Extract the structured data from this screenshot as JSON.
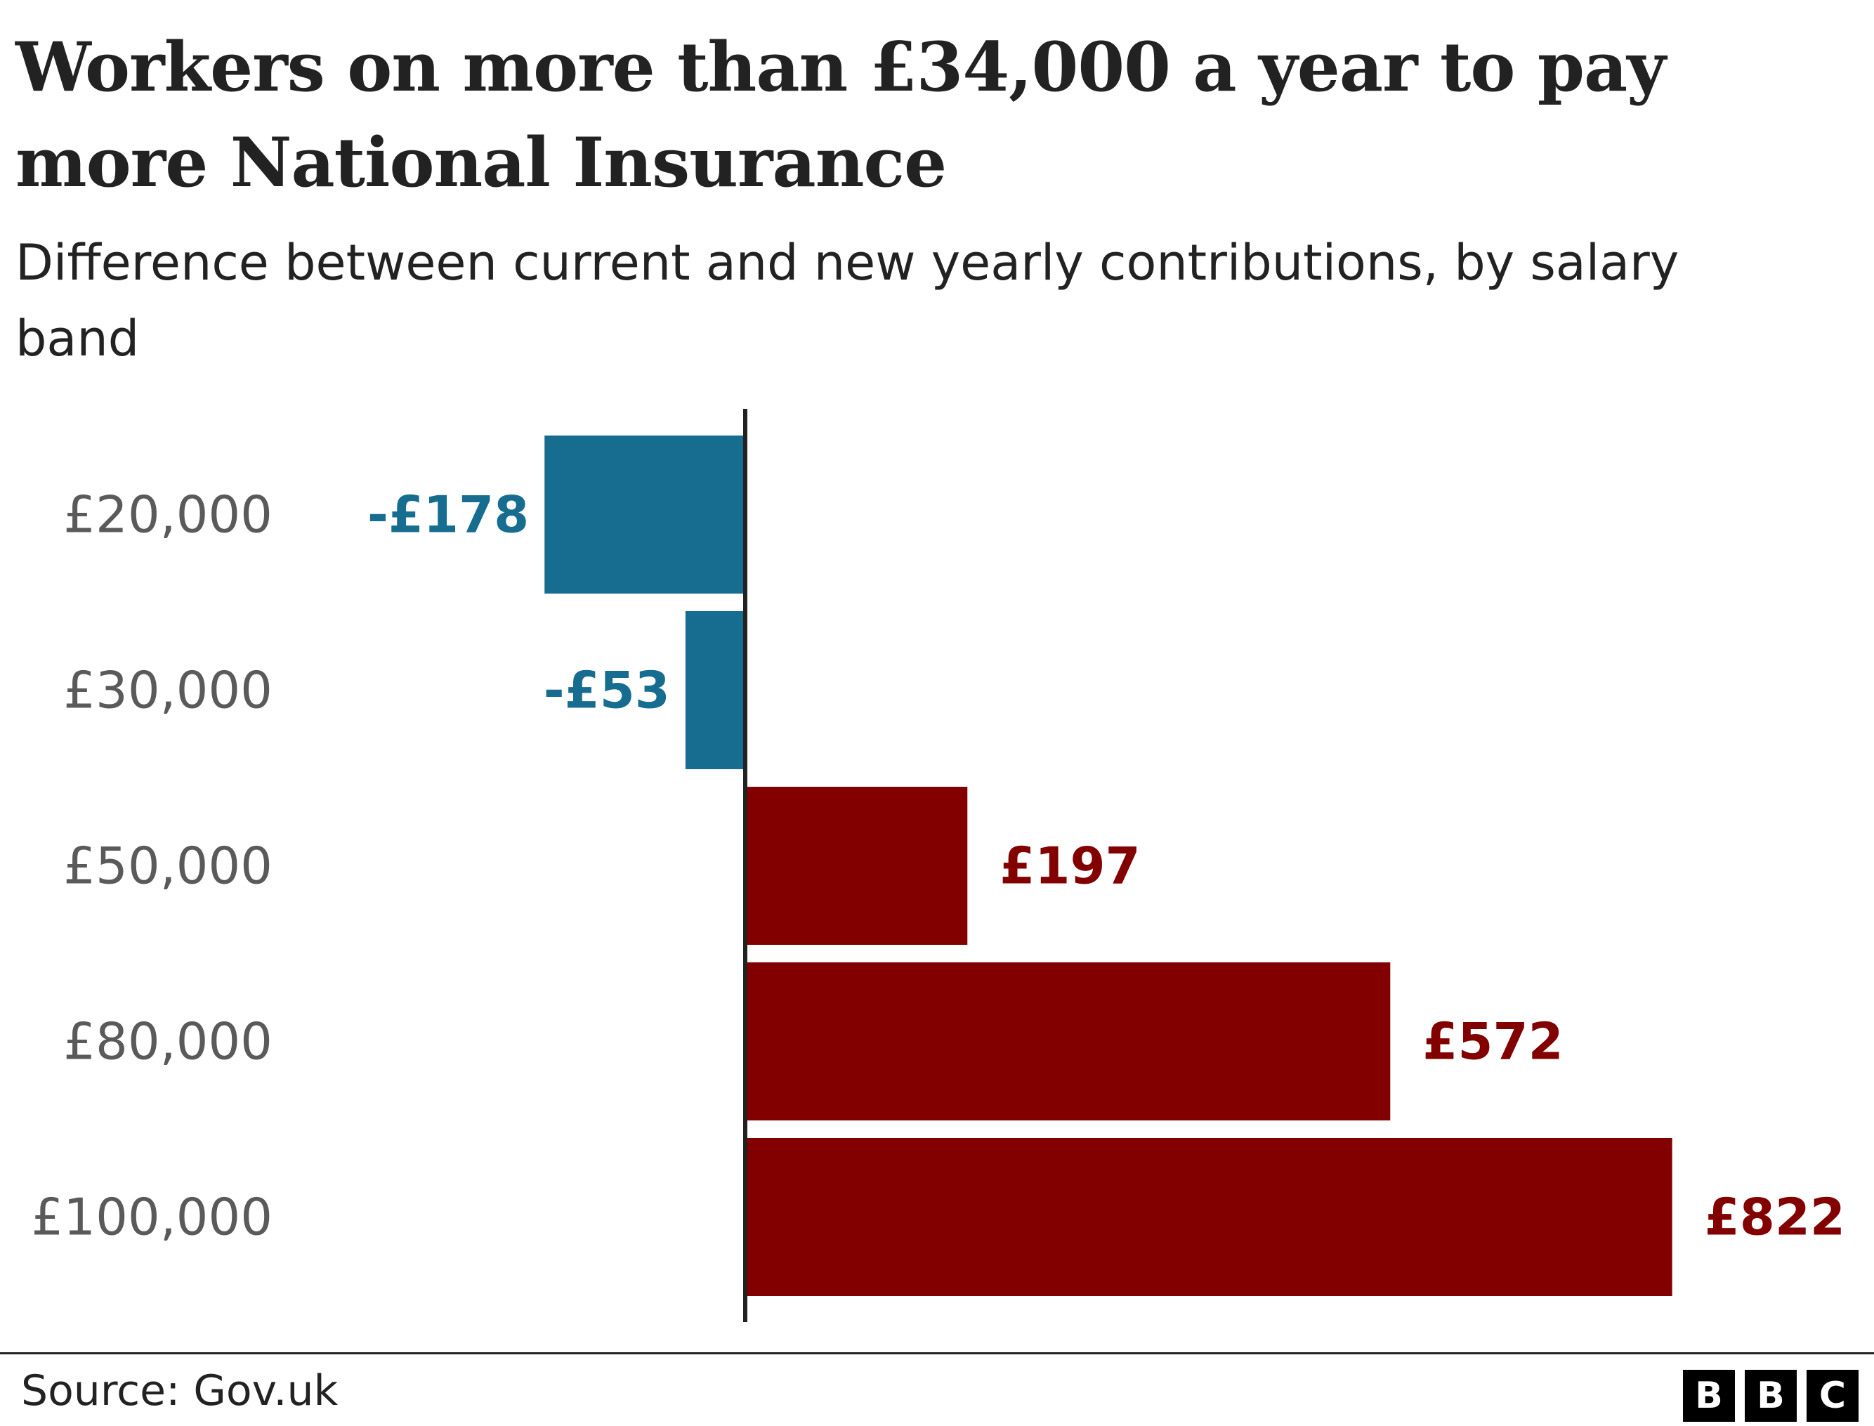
{
  "title": "Workers on more than £34,000 a year to pay more National Insurance",
  "subtitle": "Difference between current and new yearly contributions, by salary band",
  "source": "Source: Gov.uk",
  "logo": [
    "B",
    "B",
    "C"
  ],
  "colors": {
    "decrease": "#176d8f",
    "increase": "#820000",
    "category_label": "#5a5a5a",
    "axis": "#222222"
  },
  "chart_data": {
    "type": "bar",
    "orientation": "horizontal",
    "categories": [
      "£20,000",
      "£30,000",
      "£50,000",
      "£80,000",
      "£100,000"
    ],
    "values": [
      -178,
      -53,
      197,
      572,
      822
    ],
    "value_labels": [
      "-£178",
      "-£53",
      "£197",
      "£572",
      "£822"
    ],
    "xlim": [
      -310,
      822
    ]
  }
}
